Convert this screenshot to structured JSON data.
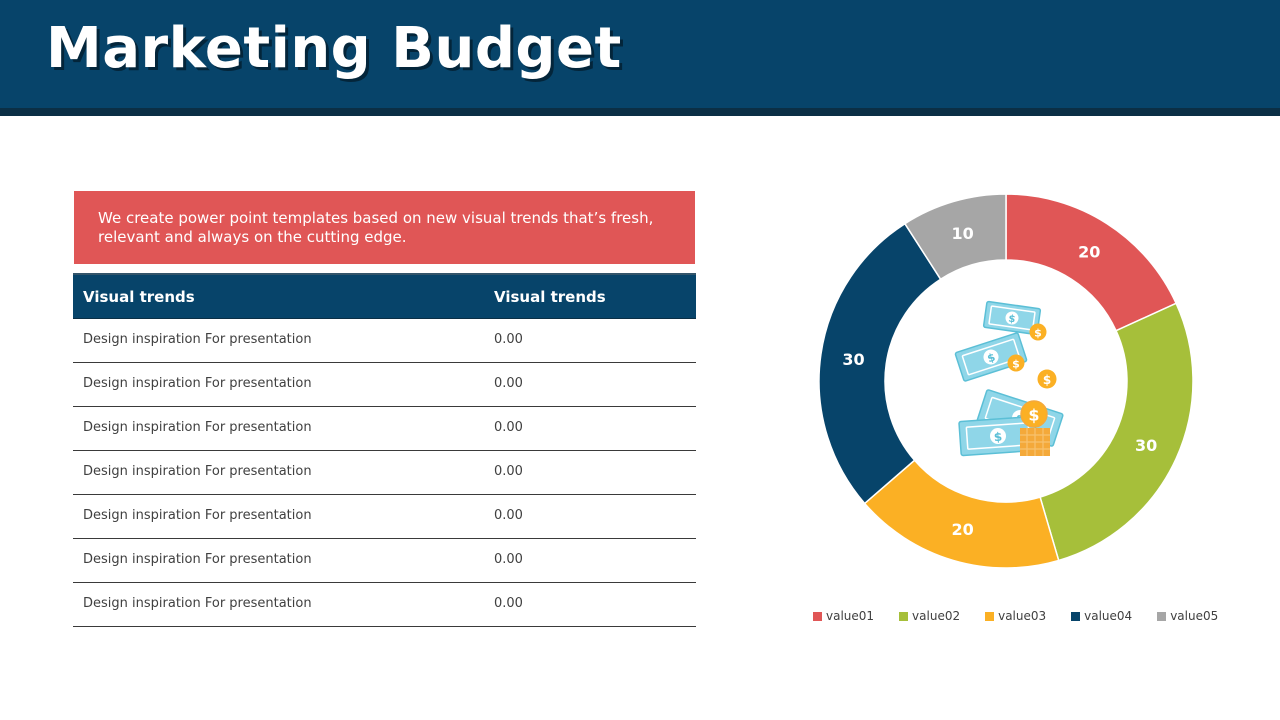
{
  "header": {
    "title": "Marketing Budget"
  },
  "banner": {
    "text": "We create power point templates based on new visual trends that’s fresh, relevant and always on the cutting edge."
  },
  "table": {
    "headers": [
      "Visual trends",
      "Visual trends"
    ],
    "rows": [
      [
        "Design inspiration For presentation",
        "0.00"
      ],
      [
        "Design inspiration For presentation",
        "0.00"
      ],
      [
        "Design inspiration For presentation",
        "0.00"
      ],
      [
        "Design inspiration For presentation",
        "0.00"
      ],
      [
        "Design inspiration For presentation",
        "0.00"
      ],
      [
        "Design inspiration For presentation",
        "0.00"
      ],
      [
        "Design inspiration For presentation",
        "0.00"
      ]
    ]
  },
  "center_icon": "money-bills-and-coins-icon",
  "chart_data": {
    "type": "pie",
    "variant": "donut",
    "categories": [
      "value01",
      "value02",
      "value03",
      "value04",
      "value05"
    ],
    "values": [
      20,
      30,
      20,
      30,
      10
    ],
    "colors": [
      "#e05656",
      "#a6bf3a",
      "#fbb024",
      "#07446a",
      "#a6a6a6"
    ],
    "data_labels": [
      "20",
      "30",
      "20",
      "30",
      "10"
    ],
    "legend_position": "bottom"
  }
}
